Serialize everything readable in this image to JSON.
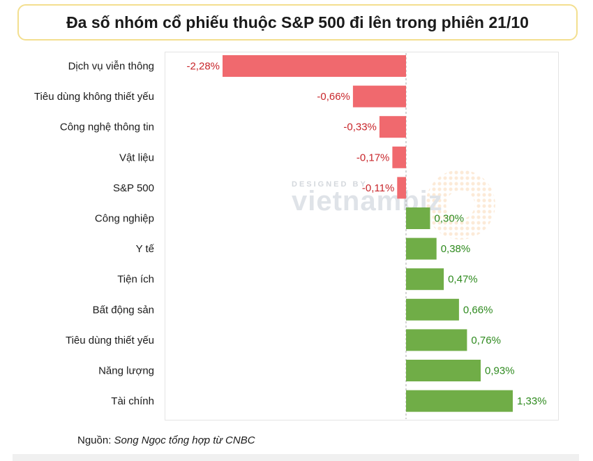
{
  "title": "Đa số nhóm cổ phiếu thuộc S&P 500 đi lên trong phiên 21/10",
  "watermark": {
    "top": "DESIGNED BY",
    "brand": "vietnambiz"
  },
  "source": {
    "prefix": "Nguồn:",
    "text": "Song Ngọc tổng hợp từ CNBC"
  },
  "colors": {
    "negative": "#f0696e",
    "positive": "#70ad47",
    "negative_text": "#c8262b",
    "positive_text": "#2e8a1e"
  },
  "chart_data": {
    "type": "bar",
    "orientation": "horizontal",
    "categories": [
      "Dịch vụ viễn thông",
      "Tiêu dùng không thiết yếu",
      "Công nghệ thông tin",
      "Vật liệu",
      "S&P 500",
      "Công nghiệp",
      "Y tế",
      "Tiện ích",
      "Bất động sản",
      "Tiêu dùng thiết yếu",
      "Năng lượng",
      "Tài chính"
    ],
    "values": [
      -2.28,
      -0.66,
      -0.33,
      -0.17,
      -0.11,
      0.3,
      0.38,
      0.47,
      0.66,
      0.76,
      0.93,
      1.33
    ],
    "labels": [
      "-2,28%",
      "-0,66%",
      "-0,33%",
      "-0,17%",
      "-0,11%",
      "0,30%",
      "0,38%",
      "0,47%",
      "0,66%",
      "0,76%",
      "0,93%",
      "1,33%"
    ],
    "unit": "%",
    "xlim": [
      -2.28,
      1.33
    ],
    "grid": false,
    "legend": "none"
  }
}
